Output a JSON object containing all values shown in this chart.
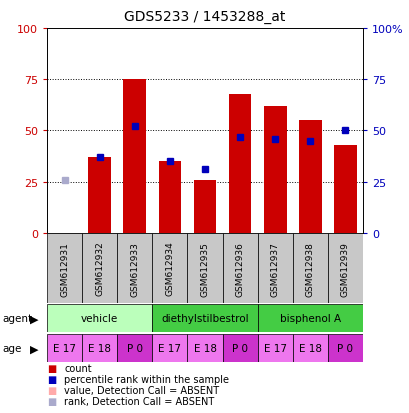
{
  "title": "GDS5233 / 1453288_at",
  "samples": [
    "GSM612931",
    "GSM612932",
    "GSM612933",
    "GSM612934",
    "GSM612935",
    "GSM612936",
    "GSM612937",
    "GSM612938",
    "GSM612939"
  ],
  "count_values": [
    0,
    37,
    75,
    35,
    26,
    68,
    62,
    55,
    43
  ],
  "rank_values": [
    26,
    37,
    52,
    35,
    31,
    47,
    46,
    45,
    50
  ],
  "absent_indices": [
    0
  ],
  "agent_groups": [
    {
      "label": "vehicle",
      "start": 0,
      "end": 2,
      "color": "#bbffbb"
    },
    {
      "label": "diethylstilbestrol",
      "start": 3,
      "end": 5,
      "color": "#44cc44"
    },
    {
      "label": "bisphenol A",
      "start": 6,
      "end": 8,
      "color": "#44cc44"
    }
  ],
  "ages": [
    "E 17",
    "E 18",
    "P 0",
    "E 17",
    "E 18",
    "P 0",
    "E 17",
    "E 18",
    "P 0"
  ],
  "age_cell_colors": [
    "#ee77ee",
    "#ee77ee",
    "#cc33cc",
    "#ee77ee",
    "#ee77ee",
    "#cc33cc",
    "#ee77ee",
    "#ee77ee",
    "#cc33cc"
  ],
  "bar_color_red": "#cc0000",
  "bar_color_pink": "#ffaaaa",
  "bar_color_blue": "#0000bb",
  "bar_color_lightblue": "#aaaacc",
  "sample_bg": "#c8c8c8",
  "left_tick_color": "#cc0000",
  "right_tick_color": "#0000bb",
  "legend_items": [
    {
      "color": "#cc0000",
      "label": "count"
    },
    {
      "color": "#0000bb",
      "label": "percentile rank within the sample"
    },
    {
      "color": "#ffaaaa",
      "label": "value, Detection Call = ABSENT"
    },
    {
      "color": "#aaaacc",
      "label": "rank, Detection Call = ABSENT"
    }
  ]
}
